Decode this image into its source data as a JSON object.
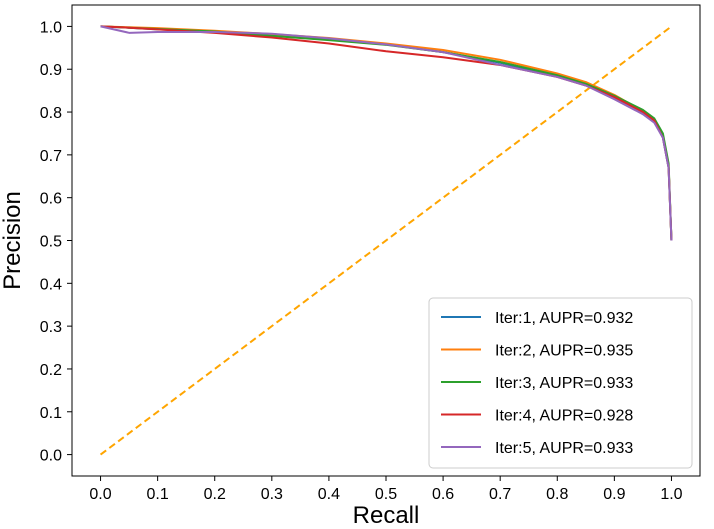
{
  "chart_data": {
    "type": "line",
    "title": "",
    "xlabel": "Recall",
    "ylabel": "Precision",
    "xlim": [
      -0.05,
      1.05
    ],
    "ylim": [
      -0.05,
      1.05
    ],
    "xticks": [
      0.0,
      0.1,
      0.2,
      0.3,
      0.4,
      0.5,
      0.6,
      0.7,
      0.8,
      0.9,
      1.0
    ],
    "yticks": [
      0.0,
      0.1,
      0.2,
      0.3,
      0.4,
      0.5,
      0.6,
      0.7,
      0.8,
      0.9,
      1.0
    ],
    "xtick_labels": [
      "0.0",
      "0.1",
      "0.2",
      "0.3",
      "0.4",
      "0.5",
      "0.6",
      "0.7",
      "0.8",
      "0.9",
      "1.0"
    ],
    "ytick_labels": [
      "0.0",
      "0.1",
      "0.2",
      "0.3",
      "0.4",
      "0.5",
      "0.6",
      "0.7",
      "0.8",
      "0.9",
      "1.0"
    ],
    "grid": false,
    "legend_position": "bottom-right",
    "series": [
      {
        "name": "Iter:1, AUPR=0.932",
        "color": "#1f77b4",
        "x": [
          0.0,
          0.05,
          0.1,
          0.2,
          0.3,
          0.4,
          0.5,
          0.6,
          0.7,
          0.8,
          0.85,
          0.9,
          0.95,
          0.97,
          0.985,
          0.995,
          1.0
        ],
        "y": [
          1.0,
          0.997,
          0.993,
          0.988,
          0.98,
          0.97,
          0.958,
          0.94,
          0.915,
          0.885,
          0.865,
          0.835,
          0.8,
          0.78,
          0.74,
          0.67,
          0.5
        ]
      },
      {
        "name": "Iter:2, AUPR=0.935",
        "color": "#ff7f0e",
        "x": [
          0.0,
          0.05,
          0.1,
          0.2,
          0.3,
          0.4,
          0.5,
          0.6,
          0.7,
          0.8,
          0.85,
          0.9,
          0.95,
          0.97,
          0.985,
          0.995,
          1.0
        ],
        "y": [
          1.0,
          0.998,
          0.996,
          0.99,
          0.982,
          0.973,
          0.96,
          0.945,
          0.922,
          0.89,
          0.87,
          0.84,
          0.802,
          0.782,
          0.745,
          0.675,
          0.5
        ]
      },
      {
        "name": "Iter:3, AUPR=0.933",
        "color": "#2ca02c",
        "x": [
          0.0,
          0.05,
          0.1,
          0.2,
          0.3,
          0.4,
          0.5,
          0.6,
          0.7,
          0.8,
          0.85,
          0.9,
          0.95,
          0.97,
          0.985,
          0.995,
          1.0
        ],
        "y": [
          1.0,
          0.997,
          0.994,
          0.988,
          0.978,
          0.968,
          0.957,
          0.94,
          0.917,
          0.886,
          0.866,
          0.838,
          0.805,
          0.785,
          0.75,
          0.68,
          0.5
        ]
      },
      {
        "name": "Iter:4, AUPR=0.928",
        "color": "#d62728",
        "x": [
          0.0,
          0.05,
          0.1,
          0.2,
          0.3,
          0.4,
          0.5,
          0.6,
          0.7,
          0.8,
          0.85,
          0.9,
          0.95,
          0.97,
          0.985,
          0.995,
          1.0
        ],
        "y": [
          1.0,
          0.997,
          0.993,
          0.985,
          0.974,
          0.96,
          0.942,
          0.928,
          0.91,
          0.882,
          0.862,
          0.835,
          0.8,
          0.78,
          0.74,
          0.67,
          0.5
        ]
      },
      {
        "name": "Iter:5, AUPR=0.933",
        "color": "#9467bd",
        "x": [
          0.0,
          0.05,
          0.1,
          0.2,
          0.3,
          0.4,
          0.5,
          0.6,
          0.7,
          0.8,
          0.85,
          0.9,
          0.95,
          0.97,
          0.985,
          0.995,
          1.0
        ],
        "y": [
          1.0,
          0.985,
          0.987,
          0.987,
          0.983,
          0.972,
          0.958,
          0.94,
          0.91,
          0.882,
          0.862,
          0.83,
          0.795,
          0.775,
          0.74,
          0.67,
          0.5
        ]
      }
    ],
    "reference_line": {
      "color": "#ffa500",
      "style": "dashed",
      "x": [
        0.0,
        1.0
      ],
      "y": [
        0.0,
        1.0
      ]
    }
  }
}
